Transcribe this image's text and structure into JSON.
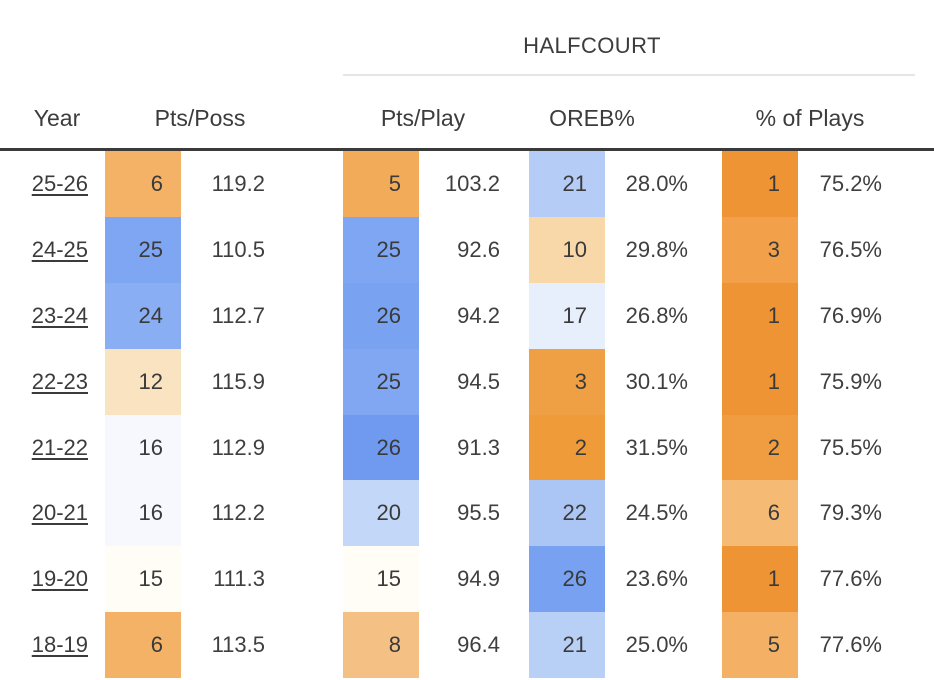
{
  "title_group": {
    "label": "HALFCOURT"
  },
  "columns": {
    "year": "Year",
    "pts_poss": "Pts/Poss",
    "pts_play": "Pts/Play",
    "oreb": "OREB%",
    "pct_plays": "% of Plays"
  },
  "colors": {
    "background": "#ffffff",
    "header_text": "#3c3c3c",
    "body_text": "#3f3f3f",
    "link_text": "#3b3b3b",
    "header_rule": "#3a3a3a",
    "group_rule": "#e6e6e6",
    "rank_best_orange": "#ef9434",
    "rank_worst_blue": "#6f9aef"
  },
  "chart_data": {
    "type": "table",
    "title": "",
    "group_header": "HALFCOURT",
    "group_columns": [
      "Pts/Play",
      "OREB%",
      "% of Plays"
    ],
    "columns": [
      "Year",
      "Pts/Poss Rank",
      "Pts/Poss",
      "Pts/Play Rank",
      "Pts/Play",
      "OREB% Rank",
      "OREB%",
      "% of Plays Rank",
      "% of Plays"
    ],
    "rows": [
      [
        "25-26",
        6,
        119.2,
        5,
        103.2,
        21,
        "28.0%",
        1,
        "75.2%"
      ],
      [
        "24-25",
        25,
        110.5,
        25,
        92.6,
        10,
        "29.8%",
        3,
        "76.5%"
      ],
      [
        "23-24",
        24,
        112.7,
        26,
        94.2,
        17,
        "26.8%",
        1,
        "76.9%"
      ],
      [
        "22-23",
        12,
        115.9,
        25,
        94.5,
        3,
        "30.1%",
        1,
        "75.9%"
      ],
      [
        "21-22",
        16,
        112.9,
        26,
        91.3,
        2,
        "31.5%",
        2,
        "75.5%"
      ],
      [
        "20-21",
        16,
        112.2,
        20,
        95.5,
        22,
        "24.5%",
        6,
        "79.3%"
      ],
      [
        "19-20",
        15,
        111.3,
        15,
        94.9,
        26,
        "23.6%",
        1,
        "77.6%"
      ],
      [
        "18-19",
        6,
        113.5,
        8,
        96.4,
        21,
        "25.0%",
        5,
        "77.6%"
      ]
    ],
    "legend_note": "cell color encodes league rank: orange = good (rank 1), blue = bad (rank 30)"
  },
  "table": {
    "rows": [
      {
        "year": "25-26",
        "metrics": [
          {
            "rank": "6",
            "value": "119.2",
            "color": "#f3b265"
          },
          {
            "rank": "5",
            "value": "103.2",
            "color": "#f2ac59"
          },
          {
            "rank": "21",
            "value": "28.0%",
            "color": "#b5cdf6"
          },
          {
            "rank": "1",
            "value": "75.2%",
            "color": "#ef9434"
          }
        ]
      },
      {
        "year": "24-25",
        "metrics": [
          {
            "rank": "25",
            "value": "110.5",
            "color": "#7fa6f2"
          },
          {
            "rank": "25",
            "value": "92.6",
            "color": "#7fa6f2"
          },
          {
            "rank": "10",
            "value": "29.8%",
            "color": "#f8d8a8"
          },
          {
            "rank": "3",
            "value": "76.5%",
            "color": "#f2a14a"
          }
        ]
      },
      {
        "year": "23-24",
        "metrics": [
          {
            "rank": "24",
            "value": "112.7",
            "color": "#8aaef3"
          },
          {
            "rank": "26",
            "value": "94.2",
            "color": "#79a2f0"
          },
          {
            "rank": "17",
            "value": "26.8%",
            "color": "#e7effc"
          },
          {
            "rank": "1",
            "value": "76.9%",
            "color": "#ef9434"
          }
        ]
      },
      {
        "year": "22-23",
        "metrics": [
          {
            "rank": "12",
            "value": "115.9",
            "color": "#fae3c0"
          },
          {
            "rank": "25",
            "value": "94.5",
            "color": "#81a7f2"
          },
          {
            "rank": "3",
            "value": "30.1%",
            "color": "#f0a044"
          },
          {
            "rank": "1",
            "value": "75.9%",
            "color": "#ef9434"
          }
        ]
      },
      {
        "year": "21-22",
        "metrics": [
          {
            "rank": "16",
            "value": "112.9",
            "color": "#f6f8fe"
          },
          {
            "rank": "26",
            "value": "91.3",
            "color": "#6f9aef"
          },
          {
            "rank": "2",
            "value": "31.5%",
            "color": "#ef9b3a"
          },
          {
            "rank": "2",
            "value": "75.5%",
            "color": "#f09c40"
          }
        ]
      },
      {
        "year": "20-21",
        "metrics": [
          {
            "rank": "16",
            "value": "112.2",
            "color": "#f6f8fe"
          },
          {
            "rank": "20",
            "value": "95.5",
            "color": "#c3d7f8"
          },
          {
            "rank": "22",
            "value": "24.5%",
            "color": "#abc6f5"
          },
          {
            "rank": "6",
            "value": "79.3%",
            "color": "#f5ba74"
          }
        ]
      },
      {
        "year": "19-20",
        "metrics": [
          {
            "rank": "15",
            "value": "111.3",
            "color": "#fffdf6"
          },
          {
            "rank": "15",
            "value": "94.9",
            "color": "#fffdf6"
          },
          {
            "rank": "26",
            "value": "23.6%",
            "color": "#78a2f1"
          },
          {
            "rank": "1",
            "value": "77.6%",
            "color": "#ef9434"
          }
        ]
      },
      {
        "year": "18-19",
        "metrics": [
          {
            "rank": "6",
            "value": "113.5",
            "color": "#f3b265"
          },
          {
            "rank": "8",
            "value": "96.4",
            "color": "#f4c084"
          },
          {
            "rank": "21",
            "value": "25.0%",
            "color": "#b9d0f6"
          },
          {
            "rank": "5",
            "value": "77.6%",
            "color": "#f4b166"
          }
        ]
      }
    ]
  }
}
